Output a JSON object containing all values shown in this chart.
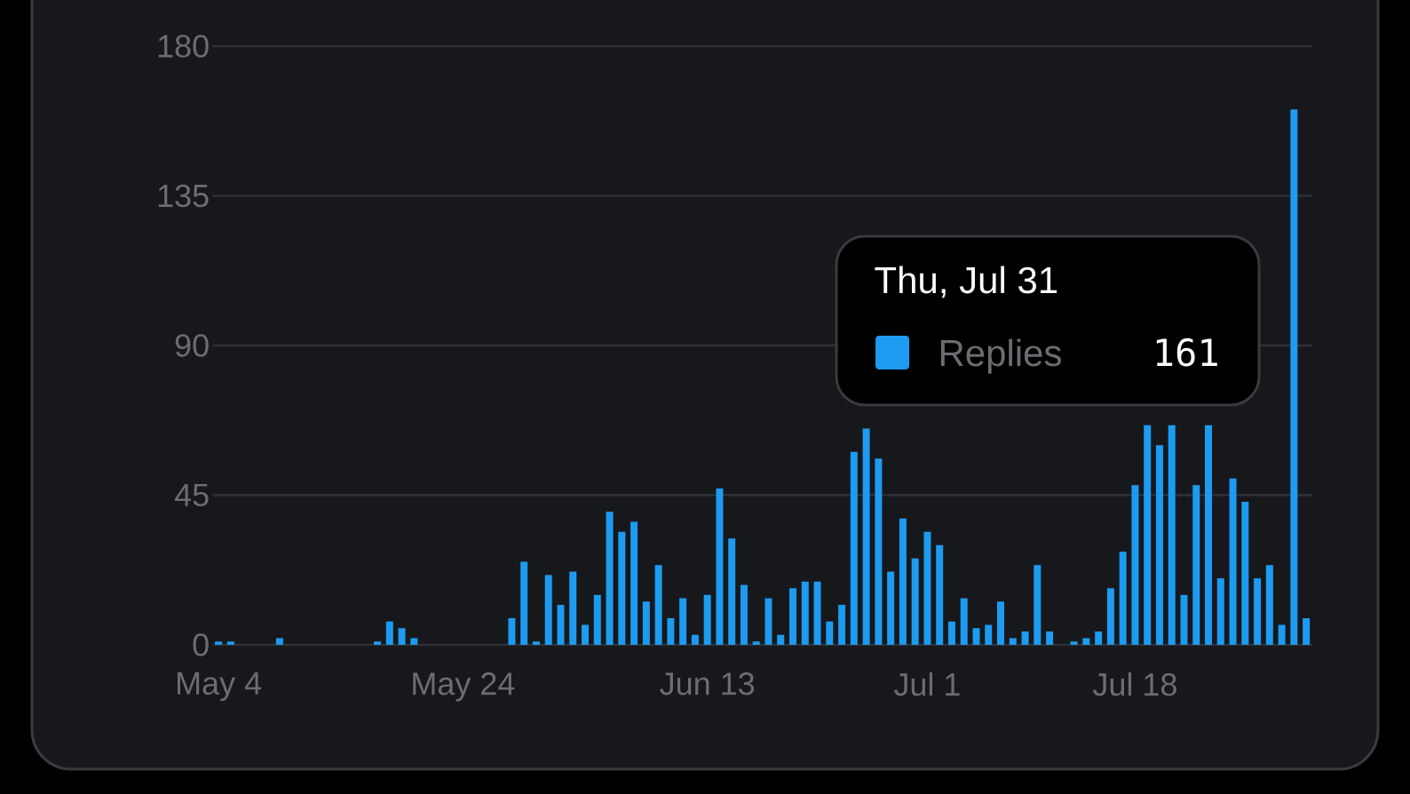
{
  "chart_data": {
    "type": "bar",
    "categories": [
      "May 4",
      null,
      null,
      null,
      null,
      null,
      null,
      null,
      null,
      null,
      null,
      null,
      null,
      null,
      null,
      null,
      null,
      null,
      null,
      null,
      "May 24",
      null,
      null,
      null,
      null,
      null,
      null,
      null,
      null,
      null,
      null,
      null,
      null,
      null,
      null,
      null,
      null,
      null,
      null,
      null,
      "Jun 13",
      null,
      null,
      null,
      null,
      null,
      null,
      null,
      null,
      null,
      null,
      null,
      null,
      null,
      null,
      null,
      null,
      null,
      "Jul 1",
      null,
      null,
      null,
      null,
      null,
      null,
      null,
      null,
      null,
      null,
      null,
      null,
      null,
      null,
      null,
      null,
      "Jul 18",
      null,
      null,
      null,
      null,
      null,
      null,
      null,
      null,
      null,
      null,
      null,
      null,
      null,
      null
    ],
    "series": [
      {
        "name": "Replies",
        "color": "#1d9bf0",
        "values": [
          1,
          1,
          0,
          0,
          0,
          2,
          0,
          0,
          0,
          0,
          0,
          0,
          0,
          1,
          7,
          5,
          2,
          0,
          0,
          0,
          0,
          0,
          0,
          0,
          8,
          25,
          1,
          21,
          12,
          22,
          6,
          15,
          40,
          34,
          37,
          13,
          24,
          8,
          14,
          3,
          15,
          47,
          32,
          18,
          1,
          14,
          3,
          17,
          19,
          19,
          7,
          12,
          58,
          65,
          56,
          22,
          38,
          26,
          34,
          30,
          7,
          14,
          5,
          6,
          13,
          2,
          4,
          24,
          4,
          0,
          1,
          2,
          4,
          17,
          28,
          48,
          66,
          60,
          66,
          15,
          48,
          66,
          20,
          50,
          43,
          20,
          24,
          6,
          161,
          8
        ]
      }
    ],
    "ylim": [
      0,
      180
    ],
    "yticks": [
      0,
      45,
      90,
      135,
      180
    ],
    "grid": "y",
    "legend": "right",
    "annotations": [
      "Thu, Jul 31",
      "161"
    ]
  }
}
